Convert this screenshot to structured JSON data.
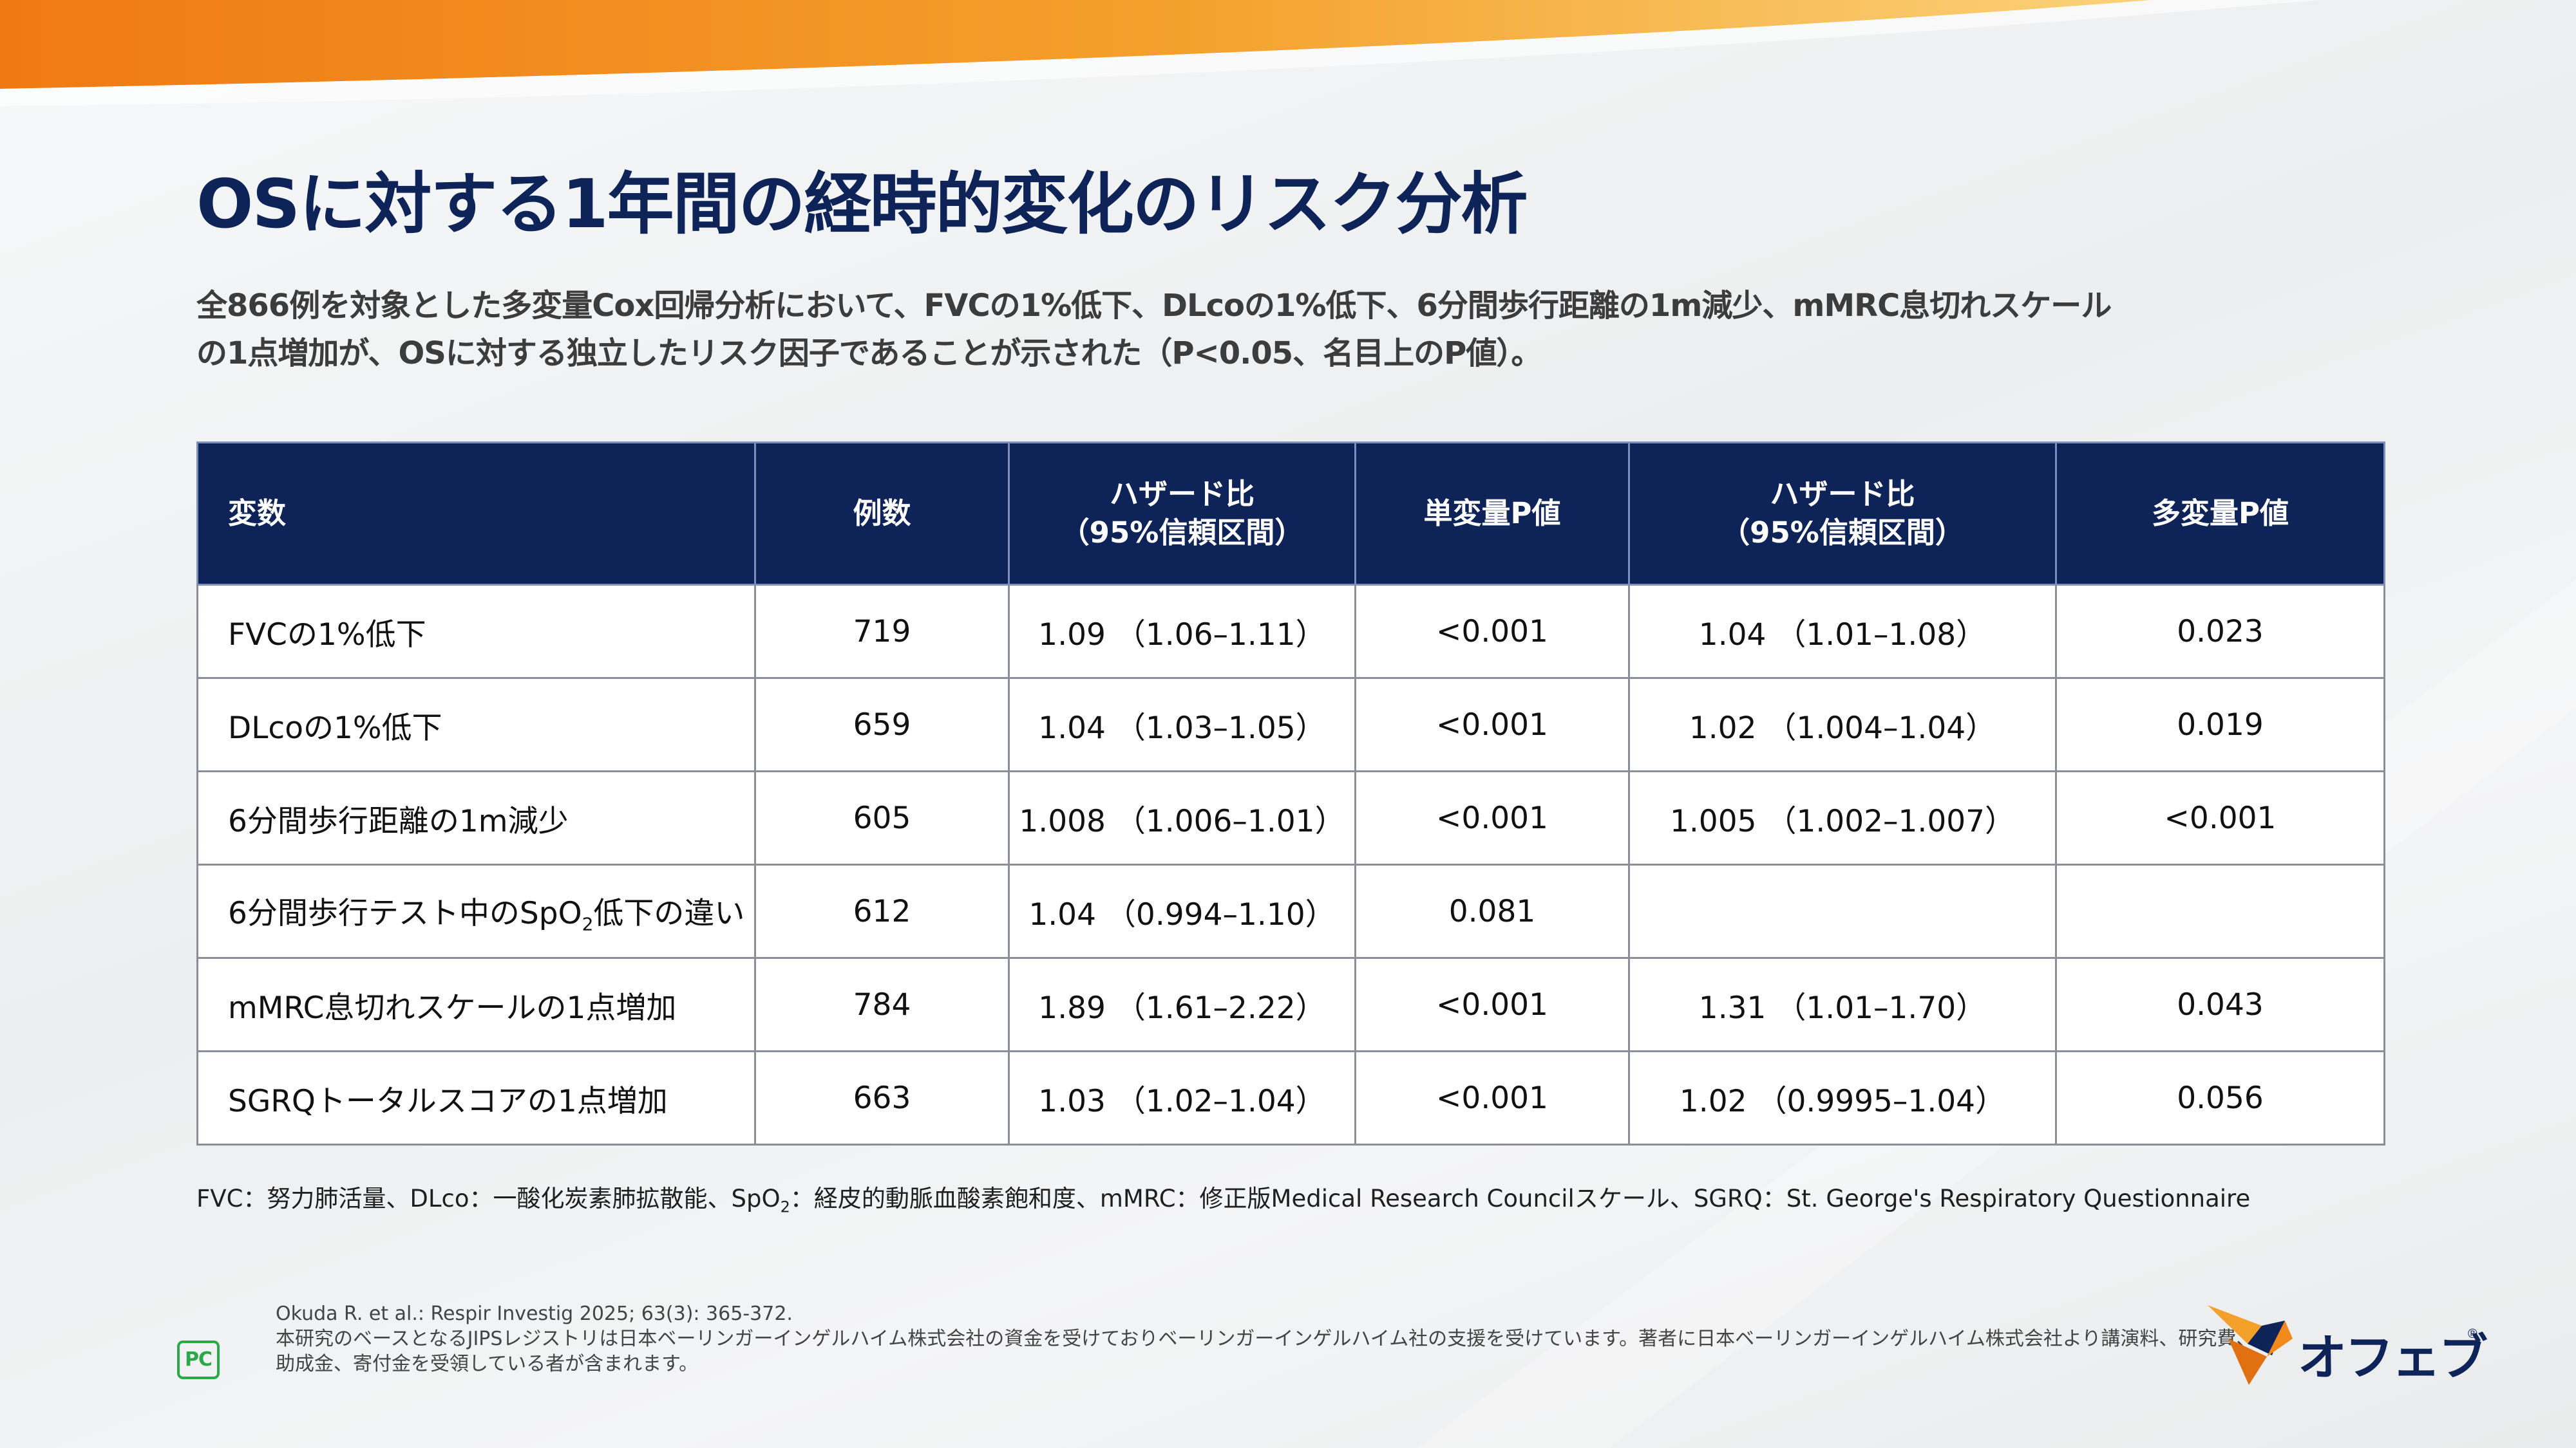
{
  "colors": {
    "navy": "#0e2358",
    "orange": "#f08a1c",
    "text": "#1a1a1a",
    "green": "#2aa84a"
  },
  "slide": {
    "title": "OSに対する1年間の経時的変化のリスク分析",
    "lead_line1": "全866例を対象とした多変量Cox回帰分析において、FVCの1%低下、DLcoの1%低下、6分間歩行距離の1m減少、mMRC息切れスケール",
    "lead_line2": "の1点増加が、OSに対する独立したリスク因子であることが示された（P<0.05、名目上のP値）。"
  },
  "table": {
    "headers": {
      "variable": "変数",
      "n": "例数",
      "hr_uni_line1": "ハザード比",
      "hr_uni_line2": "（95%信頼区間）",
      "p_uni": "単変量P値",
      "hr_multi_line1": "ハザード比",
      "hr_multi_line2": "（95%信頼区間）",
      "p_multi": "多変量P値"
    },
    "rows": [
      {
        "variable": "FVCの1%低下",
        "n": "719",
        "hr_uni": "1.09 （1.06–1.11）",
        "p_uni": "<0.001",
        "hr_multi": "1.04 （1.01–1.08）",
        "p_multi": "0.023"
      },
      {
        "variable": "DLcoの1%低下",
        "n": "659",
        "hr_uni": "1.04 （1.03–1.05）",
        "p_uni": "<0.001",
        "hr_multi": "1.02 （1.004–1.04）",
        "p_multi": "0.019"
      },
      {
        "variable": "6分間歩行距離の1m減少",
        "n": "605",
        "hr_uni": "1.008 （1.006–1.01）",
        "p_uni": "<0.001",
        "hr_multi": "1.005 （1.002–1.007）",
        "p_multi": "<0.001"
      },
      {
        "variable_pre": "6分間歩行テスト中のSpO",
        "variable_sub": "2",
        "variable_post": "低下の違い",
        "n": "612",
        "hr_uni": "1.04 （0.994–1.10）",
        "p_uni": "0.081",
        "hr_multi": "",
        "p_multi": ""
      },
      {
        "variable": "mMRC息切れスケールの1点増加",
        "n": "784",
        "hr_uni": "1.89 （1.61–2.22）",
        "p_uni": "<0.001",
        "hr_multi": "1.31 （1.01–1.70）",
        "p_multi": "0.043"
      },
      {
        "variable": "SGRQトータルスコアの1点増加",
        "n": "663",
        "hr_uni": "1.03 （1.02–1.04）",
        "p_uni": "<0.001",
        "hr_multi": "1.02 （0.9995–1.04）",
        "p_multi": "0.056"
      }
    ]
  },
  "footnote": {
    "pre": "FVC：努力肺活量、DLco：一酸化炭素肺拡散能、SpO",
    "sub": "2",
    "post": "：経皮的動脈血酸素飽和度、mMRC：修正版Medical Research Councilスケール、SGRQ：St. George's Respiratory Questionnaire"
  },
  "references": {
    "line1": "Okuda R. et al.: Respir Investig 2025; 63(3): 365-372.",
    "line2": "本研究のベースとなるJIPSレジストリは日本ベーリンガーインゲルハイム株式会社の資金を受けておりベーリンガーインゲルハイム社の支援を受けています。著者に日本ベーリンガーインゲルハイム株式会社より講演料、研究費、",
    "line3": "助成金、寄付金を受領している者が含まれます。"
  },
  "logos": {
    "pc_text": "PC",
    "brand_name": "オフェブ",
    "brand_reg": "®"
  }
}
